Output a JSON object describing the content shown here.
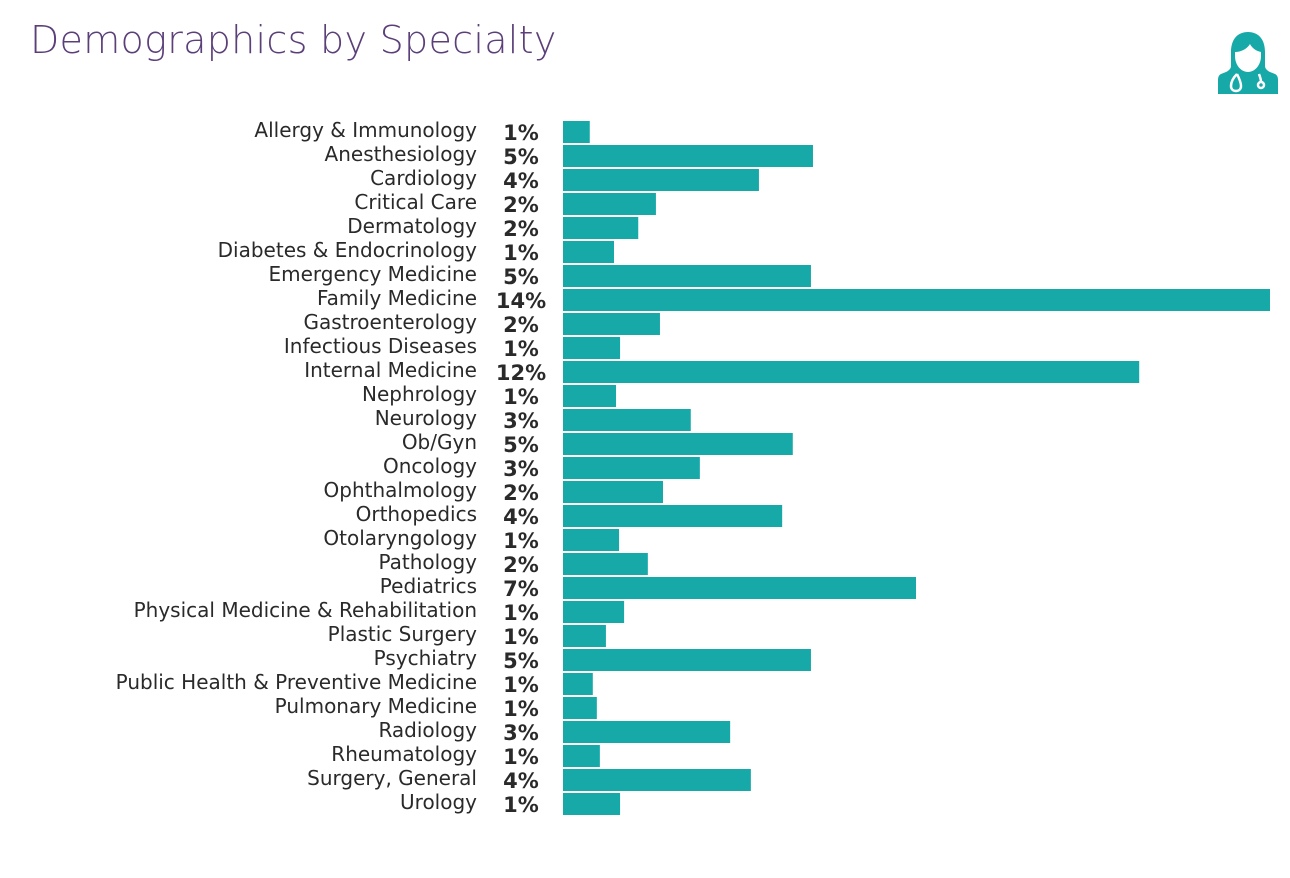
{
  "chart_data": {
    "type": "bar",
    "orientation": "horizontal",
    "title": "Demographics by Specialty",
    "xlabel": "",
    "ylabel": "",
    "unit": "%",
    "bar_color": "#17a8a8",
    "grid": false,
    "categories": [
      "Allergy & Immunology",
      "Anesthesiology",
      "Cardiology",
      "Critical Care",
      "Dermatology",
      "Diabetes & Endocrinology",
      "Emergency Medicine",
      "Family Medicine",
      "Gastroenterology",
      "Infectious Diseases",
      "Internal Medicine",
      "Nephrology",
      "Neurology",
      "Ob/Gyn",
      "Oncology",
      "Ophthalmology",
      "Orthopedics",
      "Otolaryngology",
      "Pathology",
      "Pediatrics",
      "Physical Medicine & Rehabilitation",
      "Plastic Surgery",
      "Psychiatry",
      "Public Health & Preventive Medicine",
      "Pulmonary Medicine",
      "Radiology",
      "Rheumatology",
      "Surgery, General",
      "Urology"
    ],
    "labels": [
      "1%",
      "5%",
      "4%",
      "2%",
      "2%",
      "1%",
      "5%",
      "14%",
      "2%",
      "1%",
      "12%",
      "1%",
      "3%",
      "5%",
      "3%",
      "2%",
      "4%",
      "1%",
      "2%",
      "7%",
      "1%",
      "1%",
      "5%",
      "1%",
      "1%",
      "3%",
      "1%",
      "4%",
      "1%"
    ],
    "values": [
      0.53,
      4.95,
      3.88,
      1.84,
      1.49,
      1.01,
      4.91,
      14.0,
      1.92,
      1.13,
      11.41,
      1.05,
      2.53,
      4.55,
      2.71,
      1.98,
      4.34,
      1.11,
      1.68,
      6.99,
      1.21,
      0.85,
      4.91,
      0.59,
      0.67,
      3.31,
      0.73,
      3.72,
      1.13
    ],
    "xlim": [
      0,
      14
    ]
  },
  "header": {
    "icon": "female-doctor-icon",
    "accent_color": "#17a8a8",
    "title_color": "#5b3f78"
  }
}
